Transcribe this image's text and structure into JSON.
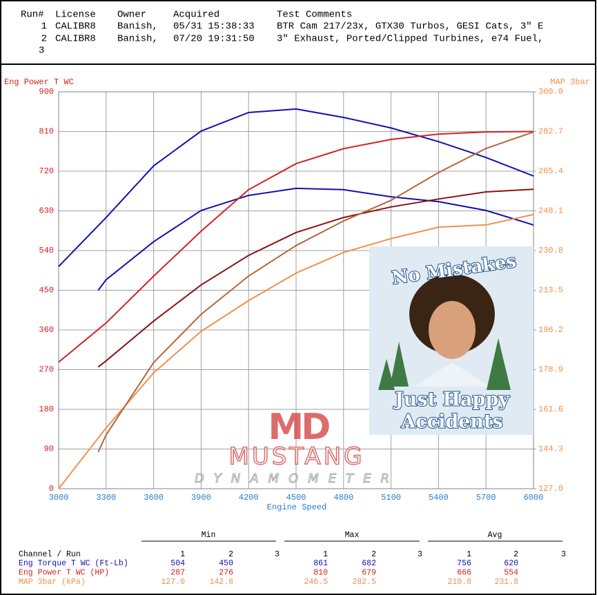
{
  "header": {
    "columns": [
      "Run#",
      "License",
      "Owner",
      "Acquired",
      "Test Comments"
    ],
    "rows": [
      [
        "1",
        "CALIBR8",
        "Banish,",
        "05/31 15:38:33",
        "BTR Cam 217/23x, GTX30 Turbos, GESI Cats, 3\" E"
      ],
      [
        "2",
        "CALIBR8",
        "Banish,",
        "07/20 19:31:50",
        "3\" Exhaust, Ported/Clipped Turbines, e74 Fuel,"
      ]
    ],
    "continuation": "3"
  },
  "chart_data": {
    "type": "line",
    "ylabel": "Eng Power T WC",
    "y2label": "MAP 3bar",
    "xlabel": "Engine Speed",
    "xlim": [
      3000,
      6000
    ],
    "xticks": [
      3000,
      3300,
      3600,
      3900,
      4200,
      4500,
      4800,
      5100,
      5400,
      5700,
      6000
    ],
    "ylim": [
      0,
      900
    ],
    "yticks": [
      0,
      90,
      180,
      270,
      360,
      450,
      540,
      630,
      720,
      810,
      900
    ],
    "y2lim": [
      127,
      300
    ],
    "y2ticks": [
      {
        "value": 127,
        "label": "127.0"
      },
      {
        "value": 144.3,
        "label": "144.3"
      },
      {
        "value": 161.6,
        "label": "161.6"
      },
      {
        "value": 178.9,
        "label": "178.9"
      },
      {
        "value": 196.2,
        "label": "196.2"
      },
      {
        "value": 213.5,
        "label": "213.5"
      },
      {
        "value": 230.8,
        "label": "230.8"
      },
      {
        "value": 248.1,
        "label": "248.1"
      },
      {
        "value": 265.4,
        "label": "265.4"
      },
      {
        "value": 282.7,
        "label": "282.7"
      },
      {
        "value": 300,
        "label": "300.0"
      }
    ],
    "grid": true,
    "series": [
      {
        "color": "#1010b0",
        "x": [
          3000,
          3300,
          3600,
          3900,
          4200,
          4500,
          4800,
          5100,
          5400,
          5700,
          6000
        ],
        "values": [
          504,
          615,
          732,
          811,
          853,
          861,
          842,
          818,
          787,
          751,
          709
        ]
      },
      {
        "color": "#1010b0",
        "x": [
          3250,
          3300,
          3600,
          3900,
          4200,
          4500,
          4800,
          5100,
          5400,
          5700,
          6000
        ],
        "values": [
          450,
          474,
          560,
          631,
          665,
          681,
          678,
          662,
          651,
          631,
          598
        ]
      },
      {
        "color": "#d42020",
        "x": [
          3000,
          3300,
          3600,
          3900,
          4200,
          4500,
          4800,
          5100,
          5400,
          5700,
          6000
        ],
        "values": [
          287,
          376,
          482,
          584,
          678,
          737,
          771,
          792,
          804,
          809,
          810
        ]
      },
      {
        "color": "#8b1010",
        "x": [
          3250,
          3300,
          3600,
          3900,
          4200,
          4500,
          4800,
          5100,
          5400,
          5700,
          6000
        ],
        "values": [
          276,
          290,
          380,
          462,
          529,
          581,
          615,
          639,
          657,
          673,
          679
        ]
      },
      {
        "color": "#f0904a",
        "axis": "y2",
        "x": [
          3000,
          3300,
          3600,
          3900,
          4200,
          4500,
          4800,
          5100,
          5400,
          5700,
          6000
        ],
        "values": [
          127,
          153.5,
          177.5,
          195.6,
          209,
          221,
          230,
          236,
          241,
          242,
          246.5
        ]
      },
      {
        "color": "#b5653a",
        "axis": "y2",
        "x": [
          3250,
          3300,
          3600,
          3900,
          4200,
          4500,
          4800,
          5100,
          5400,
          5700,
          6000
        ],
        "values": [
          143,
          150.5,
          182,
          203,
          219.7,
          233,
          243.7,
          252.7,
          264.8,
          275.3,
          282.5
        ]
      }
    ]
  },
  "overlay": {
    "top": "No Mistakes",
    "line1": "Just Happy",
    "line2": "Accidents"
  },
  "logo": {
    "mark": "MD",
    "name": "MUSTANG",
    "sub": "DYNAMOMETER"
  },
  "stats": {
    "groups": [
      "Min",
      "Max",
      "Avg"
    ],
    "channel_header": "Channel / Run",
    "runs": [
      "1",
      "2",
      "3"
    ],
    "rows": [
      {
        "name": "Eng Torque T WC (Ft-Lb)",
        "color": "#1010b0",
        "cells": [
          "504",
          "450",
          "861",
          "682",
          "756",
          "620"
        ]
      },
      {
        "name": "Eng Power T WC (HP)",
        "color": "#d42020",
        "cells": [
          "287",
          "276",
          "810",
          "679",
          "666",
          "554"
        ]
      },
      {
        "name": "MAP 3bar (kPa)",
        "color": "#f0904a",
        "cells": [
          "127.0",
          "142.8",
          "246.5",
          "282.5",
          "210.8",
          "231.8"
        ]
      }
    ]
  }
}
